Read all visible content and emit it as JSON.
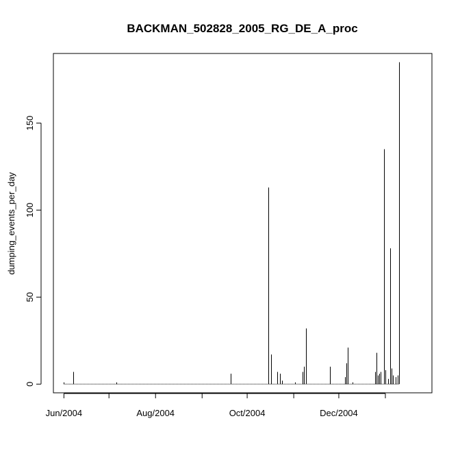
{
  "chart_data": {
    "type": "bar",
    "title": "BACKMAN_502828_2005_RG_DE_A_proc",
    "xlabel": "",
    "ylabel": "dumping_events_per_day",
    "x_range": [
      "2004-05-25",
      "2005-02-01"
    ],
    "ylim": [
      -5,
      190
    ],
    "x_ticks": [
      {
        "date": "2004-06-01",
        "label": "Jun/2004"
      },
      {
        "date": "2004-07-01",
        "label": ""
      },
      {
        "date": "2004-08-01",
        "label": "Aug/2004"
      },
      {
        "date": "2004-09-01",
        "label": ""
      },
      {
        "date": "2004-10-01",
        "label": "Oct/2004"
      },
      {
        "date": "2004-11-01",
        "label": ""
      },
      {
        "date": "2004-12-01",
        "label": "Dec/2004"
      },
      {
        "date": "2005-01-01",
        "label": ""
      }
    ],
    "y_ticks": [
      0,
      50,
      100,
      150
    ],
    "baseline": {
      "start": "2004-06-01",
      "end": "2005-01-10",
      "value": 0
    },
    "series": [
      {
        "name": "",
        "points": [
          {
            "date": "2004-06-01",
            "value": 1
          },
          {
            "date": "2004-06-07",
            "value": 7
          },
          {
            "date": "2004-07-06",
            "value": 1
          },
          {
            "date": "2004-09-20",
            "value": 6
          },
          {
            "date": "2004-10-15",
            "value": 113
          },
          {
            "date": "2004-10-17",
            "value": 17
          },
          {
            "date": "2004-10-21",
            "value": 7
          },
          {
            "date": "2004-10-23",
            "value": 6
          },
          {
            "date": "2004-10-24",
            "value": 2
          },
          {
            "date": "2004-11-02",
            "value": 1
          },
          {
            "date": "2004-11-07",
            "value": 7
          },
          {
            "date": "2004-11-08",
            "value": 10
          },
          {
            "date": "2004-11-09",
            "value": 32
          },
          {
            "date": "2004-11-25",
            "value": 10
          },
          {
            "date": "2004-12-05",
            "value": 4
          },
          {
            "date": "2004-12-06",
            "value": 12
          },
          {
            "date": "2004-12-07",
            "value": 21
          },
          {
            "date": "2004-12-10",
            "value": 1
          },
          {
            "date": "2004-12-25",
            "value": 7
          },
          {
            "date": "2004-12-26",
            "value": 18
          },
          {
            "date": "2004-12-27",
            "value": 5
          },
          {
            "date": "2004-12-28",
            "value": 6
          },
          {
            "date": "2004-12-29",
            "value": 7
          },
          {
            "date": "2004-12-31",
            "value": 135
          },
          {
            "date": "2005-01-01",
            "value": 8
          },
          {
            "date": "2005-01-03",
            "value": 3
          },
          {
            "date": "2005-01-04",
            "value": 78
          },
          {
            "date": "2005-01-05",
            "value": 9
          },
          {
            "date": "2005-01-06",
            "value": 5
          },
          {
            "date": "2005-01-08",
            "value": 4
          },
          {
            "date": "2005-01-09",
            "value": 5
          },
          {
            "date": "2005-01-10",
            "value": 185
          }
        ]
      }
    ],
    "grid": false,
    "legend": "none"
  }
}
